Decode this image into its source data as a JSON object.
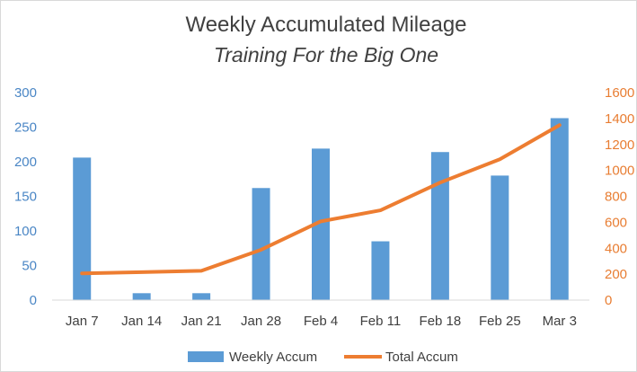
{
  "chart_data": {
    "type": "bar+line",
    "title": "Weekly Accumulated Mileage",
    "subtitle": "Training For the Big One",
    "categories": [
      "Jan 7",
      "Jan 14",
      "Jan 21",
      "Jan 28",
      "Feb 4",
      "Feb 11",
      "Feb 18",
      "Feb 25",
      "Mar 3"
    ],
    "series": [
      {
        "name": "Weekly Accum",
        "type": "bar",
        "axis": "left",
        "color": "#5b9bd5",
        "values": [
          206,
          10,
          10,
          162,
          219,
          85,
          214,
          180,
          263
        ]
      },
      {
        "name": "Total Accum",
        "type": "line",
        "axis": "right",
        "color": "#ed7d31",
        "values": [
          206,
          216,
          226,
          388,
          607,
          692,
          906,
          1086,
          1349
        ]
      }
    ],
    "y_left": {
      "min": 0,
      "max": 300,
      "ticks": [
        "0",
        "50",
        "100",
        "150",
        "200",
        "250",
        "300"
      ],
      "color": "#4a86c5"
    },
    "y_right": {
      "min": 0,
      "max": 1600,
      "ticks": [
        "0",
        "200",
        "400",
        "600",
        "800",
        "1000",
        "1200",
        "1400",
        "1600"
      ],
      "color": "#e87d32"
    },
    "grid": false,
    "legend_position": "bottom"
  }
}
